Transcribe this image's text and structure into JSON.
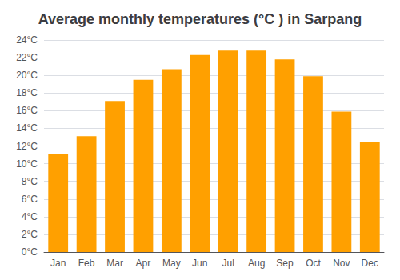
{
  "chart_data": {
    "type": "bar",
    "title": "Average monthly temperatures (°C ) in Sarpang",
    "categories": [
      "Jan",
      "Feb",
      "Mar",
      "Apr",
      "May",
      "Jun",
      "Jul",
      "Aug",
      "Sep",
      "Oct",
      "Nov",
      "Dec"
    ],
    "values": [
      11.1,
      13.1,
      17.1,
      19.5,
      20.7,
      22.3,
      22.8,
      22.8,
      21.8,
      19.9,
      15.9,
      12.5
    ],
    "color": "#FFA000",
    "ylim": [
      0,
      24
    ],
    "yticks": [
      {
        "value": 0,
        "label": "0°C"
      },
      {
        "value": 2,
        "label": "2°C"
      },
      {
        "value": 4,
        "label": "4°C"
      },
      {
        "value": 6,
        "label": "6°C"
      },
      {
        "value": 8,
        "label": "8°C"
      },
      {
        "value": 10,
        "label": "10°C"
      },
      {
        "value": 12,
        "label": "12°C"
      },
      {
        "value": 14,
        "label": "14°C"
      },
      {
        "value": 16,
        "label": "16°C"
      },
      {
        "value": 18,
        "label": "18°C"
      },
      {
        "value": 20,
        "label": "20°C"
      },
      {
        "value": 22,
        "label": "22°C"
      },
      {
        "value": 24,
        "label": "24°C"
      }
    ],
    "grid": true
  }
}
